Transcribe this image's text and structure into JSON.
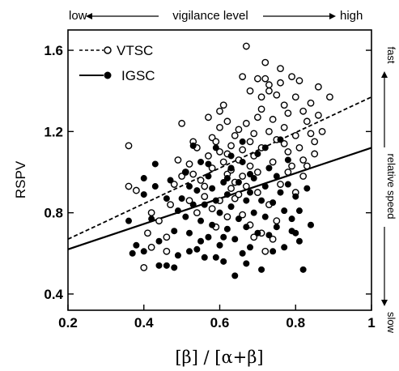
{
  "chart_data": {
    "type": "scatter",
    "top_annotation": {
      "left": "low",
      "center": "vigilance level",
      "right": "high"
    },
    "right_annotation": {
      "top": "fast",
      "center": "relative speed",
      "bottom": "slow"
    },
    "ylabel": "RSPV",
    "xlabel": "[β] / [α+β]",
    "xlim": [
      0.2,
      1.0
    ],
    "ylim": [
      0.32,
      1.7
    ],
    "x_ticks": [
      {
        "value": 0.2,
        "label": "0.2"
      },
      {
        "value": 0.4,
        "label": "0.4"
      },
      {
        "value": 0.6,
        "label": "0.6"
      },
      {
        "value": 0.8,
        "label": "0.8"
      },
      {
        "value": 1.0,
        "label": "1"
      }
    ],
    "y_ticks": [
      {
        "value": 0.4,
        "label": "0.4"
      },
      {
        "value": 0.8,
        "label": "0.8"
      },
      {
        "value": 1.2,
        "label": "1.2"
      },
      {
        "value": 1.6,
        "label": "1.6"
      }
    ],
    "grid": false,
    "legend_position": "top-left",
    "series": [
      {
        "name": "VTSC",
        "marker": "open-circle",
        "line_style": "dashed",
        "fit_line": {
          "x": [
            0.2,
            1.0
          ],
          "y": [
            0.67,
            1.37
          ]
        },
        "points": [
          [
            0.36,
            1.13
          ],
          [
            0.36,
            0.93
          ],
          [
            0.38,
            0.91
          ],
          [
            0.42,
            0.8
          ],
          [
            0.44,
            0.76
          ],
          [
            0.41,
            0.7
          ],
          [
            0.42,
            0.63
          ],
          [
            0.4,
            0.53
          ],
          [
            0.46,
            0.61
          ],
          [
            0.46,
            0.68
          ],
          [
            0.5,
            1.24
          ],
          [
            0.49,
            1.06
          ],
          [
            0.5,
            0.98
          ],
          [
            0.51,
            1.0
          ],
          [
            0.52,
            1.04
          ],
          [
            0.53,
            0.99
          ],
          [
            0.54,
            1.12
          ],
          [
            0.55,
            0.96
          ],
          [
            0.52,
            0.86
          ],
          [
            0.56,
            0.88
          ],
          [
            0.57,
            1.08
          ],
          [
            0.58,
            1.02
          ],
          [
            0.58,
            1.17
          ],
          [
            0.59,
            1.15
          ],
          [
            0.6,
            1.22
          ],
          [
            0.6,
            1.3
          ],
          [
            0.61,
            1.33
          ],
          [
            0.6,
            1.1
          ],
          [
            0.61,
            1.05
          ],
          [
            0.62,
            0.99
          ],
          [
            0.62,
            1.09
          ],
          [
            0.63,
            1.13
          ],
          [
            0.63,
            1.01
          ],
          [
            0.64,
            0.95
          ],
          [
            0.64,
            1.18
          ],
          [
            0.65,
            1.21
          ],
          [
            0.65,
            1.06
          ],
          [
            0.66,
            1.11
          ],
          [
            0.66,
            0.98
          ],
          [
            0.67,
            1.24
          ],
          [
            0.67,
            1.62
          ],
          [
            0.68,
            1.03
          ],
          [
            0.68,
            1.15
          ],
          [
            0.69,
            1.19
          ],
          [
            0.69,
            1.08
          ],
          [
            0.7,
            1.0
          ],
          [
            0.7,
            1.27
          ],
          [
            0.71,
            1.31
          ],
          [
            0.71,
            1.12
          ],
          [
            0.72,
            1.54
          ],
          [
            0.72,
            1.46
          ],
          [
            0.73,
            1.4
          ],
          [
            0.73,
            1.2
          ],
          [
            0.74,
            1.05
          ],
          [
            0.74,
            1.26
          ],
          [
            0.75,
            1.38
          ],
          [
            0.75,
            1.16
          ],
          [
            0.76,
            1.51
          ],
          [
            0.76,
            1.44
          ],
          [
            0.77,
            1.33
          ],
          [
            0.77,
            1.22
          ],
          [
            0.78,
            1.1
          ],
          [
            0.78,
            1.29
          ],
          [
            0.79,
            1.47
          ],
          [
            0.79,
            1.03
          ],
          [
            0.8,
            1.18
          ],
          [
            0.8,
            1.37
          ],
          [
            0.81,
            1.45
          ],
          [
            0.81,
            1.12
          ],
          [
            0.82,
            1.3
          ],
          [
            0.82,
            1.06
          ],
          [
            0.83,
            1.25
          ],
          [
            0.84,
            1.34
          ],
          [
            0.85,
            1.15
          ],
          [
            0.85,
            1.09
          ],
          [
            0.86,
            1.42
          ],
          [
            0.87,
            1.2
          ],
          [
            0.89,
            1.37
          ],
          [
            0.64,
            0.87
          ],
          [
            0.66,
            0.79
          ],
          [
            0.68,
            0.74
          ],
          [
            0.7,
            0.9
          ],
          [
            0.71,
            0.7
          ],
          [
            0.72,
            0.61
          ],
          [
            0.73,
            0.84
          ],
          [
            0.75,
            0.76
          ],
          [
            0.76,
            0.94
          ],
          [
            0.69,
            0.68
          ],
          [
            0.74,
            0.67
          ],
          [
            0.62,
            0.78
          ],
          [
            0.56,
            0.93
          ],
          [
            0.58,
            0.82
          ],
          [
            0.59,
            0.73
          ],
          [
            0.54,
            0.8
          ],
          [
            0.66,
            1.47
          ],
          [
            0.68,
            1.4
          ],
          [
            0.7,
            1.46
          ],
          [
            0.71,
            1.37
          ],
          [
            0.73,
            1.43
          ],
          [
            0.62,
            1.25
          ],
          [
            0.57,
            1.27
          ],
          [
            0.53,
            1.15
          ],
          [
            0.48,
            0.94
          ],
          [
            0.47,
            0.84
          ],
          [
            0.6,
            0.86
          ],
          [
            0.63,
            0.92
          ],
          [
            0.65,
            0.89
          ],
          [
            0.67,
            0.93
          ],
          [
            0.78,
            1.0
          ],
          [
            0.82,
            0.98
          ],
          [
            0.83,
            1.03
          ],
          [
            0.84,
            1.19
          ],
          [
            0.86,
            1.28
          ],
          [
            0.8,
            0.9
          ],
          [
            0.77,
            1.14
          ]
        ]
      },
      {
        "name": "IGSC",
        "marker": "filled-circle",
        "line_style": "solid",
        "fit_line": {
          "x": [
            0.2,
            1.0
          ],
          "y": [
            0.62,
            1.12
          ]
        },
        "points": [
          [
            0.36,
            0.76
          ],
          [
            0.38,
            0.64
          ],
          [
            0.37,
            0.6
          ],
          [
            0.4,
            0.97
          ],
          [
            0.4,
            0.89
          ],
          [
            0.4,
            0.61
          ],
          [
            0.43,
            1.04
          ],
          [
            0.43,
            0.93
          ],
          [
            0.44,
            0.66
          ],
          [
            0.44,
            0.54
          ],
          [
            0.46,
            0.54
          ],
          [
            0.47,
            0.96
          ],
          [
            0.48,
            0.71
          ],
          [
            0.49,
            0.59
          ],
          [
            0.5,
            0.87
          ],
          [
            0.51,
            0.78
          ],
          [
            0.51,
            1.0
          ],
          [
            0.52,
            0.93
          ],
          [
            0.52,
            0.7
          ],
          [
            0.53,
            0.84
          ],
          [
            0.54,
            0.62
          ],
          [
            0.54,
            0.91
          ],
          [
            0.55,
            1.05
          ],
          [
            0.55,
            0.76
          ],
          [
            0.56,
            0.58
          ],
          [
            0.56,
            0.84
          ],
          [
            0.57,
            0.98
          ],
          [
            0.57,
            0.68
          ],
          [
            0.58,
            0.92
          ],
          [
            0.58,
            0.74
          ],
          [
            0.59,
            0.86
          ],
          [
            0.59,
            1.12
          ],
          [
            0.6,
            0.64
          ],
          [
            0.6,
            0.8
          ],
          [
            0.61,
            0.95
          ],
          [
            0.61,
            0.56
          ],
          [
            0.62,
            0.89
          ],
          [
            0.62,
            0.72
          ],
          [
            0.63,
            1.02
          ],
          [
            0.63,
            0.83
          ],
          [
            0.64,
            0.67
          ],
          [
            0.64,
            0.49
          ],
          [
            0.65,
            0.77
          ],
          [
            0.65,
            0.95
          ],
          [
            0.66,
            0.6
          ],
          [
            0.66,
            1.05
          ],
          [
            0.67,
            0.86
          ],
          [
            0.67,
            0.73
          ],
          [
            0.68,
            0.9
          ],
          [
            0.68,
            0.63
          ],
          [
            0.69,
            0.97
          ],
          [
            0.69,
            0.8
          ],
          [
            0.7,
            0.7
          ],
          [
            0.7,
            1.09
          ],
          [
            0.71,
            0.86
          ],
          [
            0.71,
            0.52
          ],
          [
            0.72,
            0.93
          ],
          [
            0.72,
            0.78
          ],
          [
            0.73,
            1.02
          ],
          [
            0.73,
            0.69
          ],
          [
            0.74,
            0.85
          ],
          [
            0.75,
            0.98
          ],
          [
            0.75,
            0.73
          ],
          [
            0.76,
            0.9
          ],
          [
            0.77,
            0.81
          ],
          [
            0.77,
            0.63
          ],
          [
            0.78,
            1.06
          ],
          [
            0.78,
            0.94
          ],
          [
            0.79,
            0.77
          ],
          [
            0.8,
            0.88
          ],
          [
            0.8,
            0.7
          ],
          [
            0.81,
            0.81
          ],
          [
            0.82,
            0.52
          ],
          [
            0.83,
            0.92
          ],
          [
            0.84,
            0.74
          ],
          [
            0.63,
            1.08
          ],
          [
            0.57,
            1.04
          ],
          [
            0.53,
            1.13
          ],
          [
            0.66,
            1.15
          ],
          [
            0.72,
            1.12
          ],
          [
            0.76,
            1.16
          ],
          [
            0.49,
            0.81
          ],
          [
            0.46,
            0.87
          ],
          [
            0.42,
            0.77
          ],
          [
            0.48,
            0.53
          ],
          [
            0.55,
            0.66
          ],
          [
            0.61,
            0.68
          ],
          [
            0.67,
            0.55
          ],
          [
            0.74,
            0.61
          ],
          [
            0.79,
            0.71
          ],
          [
            0.81,
            0.66
          ],
          [
            0.59,
            0.58
          ],
          [
            0.52,
            0.61
          ],
          [
            0.68,
            0.99
          ],
          [
            0.62,
            0.97
          ]
        ]
      }
    ]
  }
}
